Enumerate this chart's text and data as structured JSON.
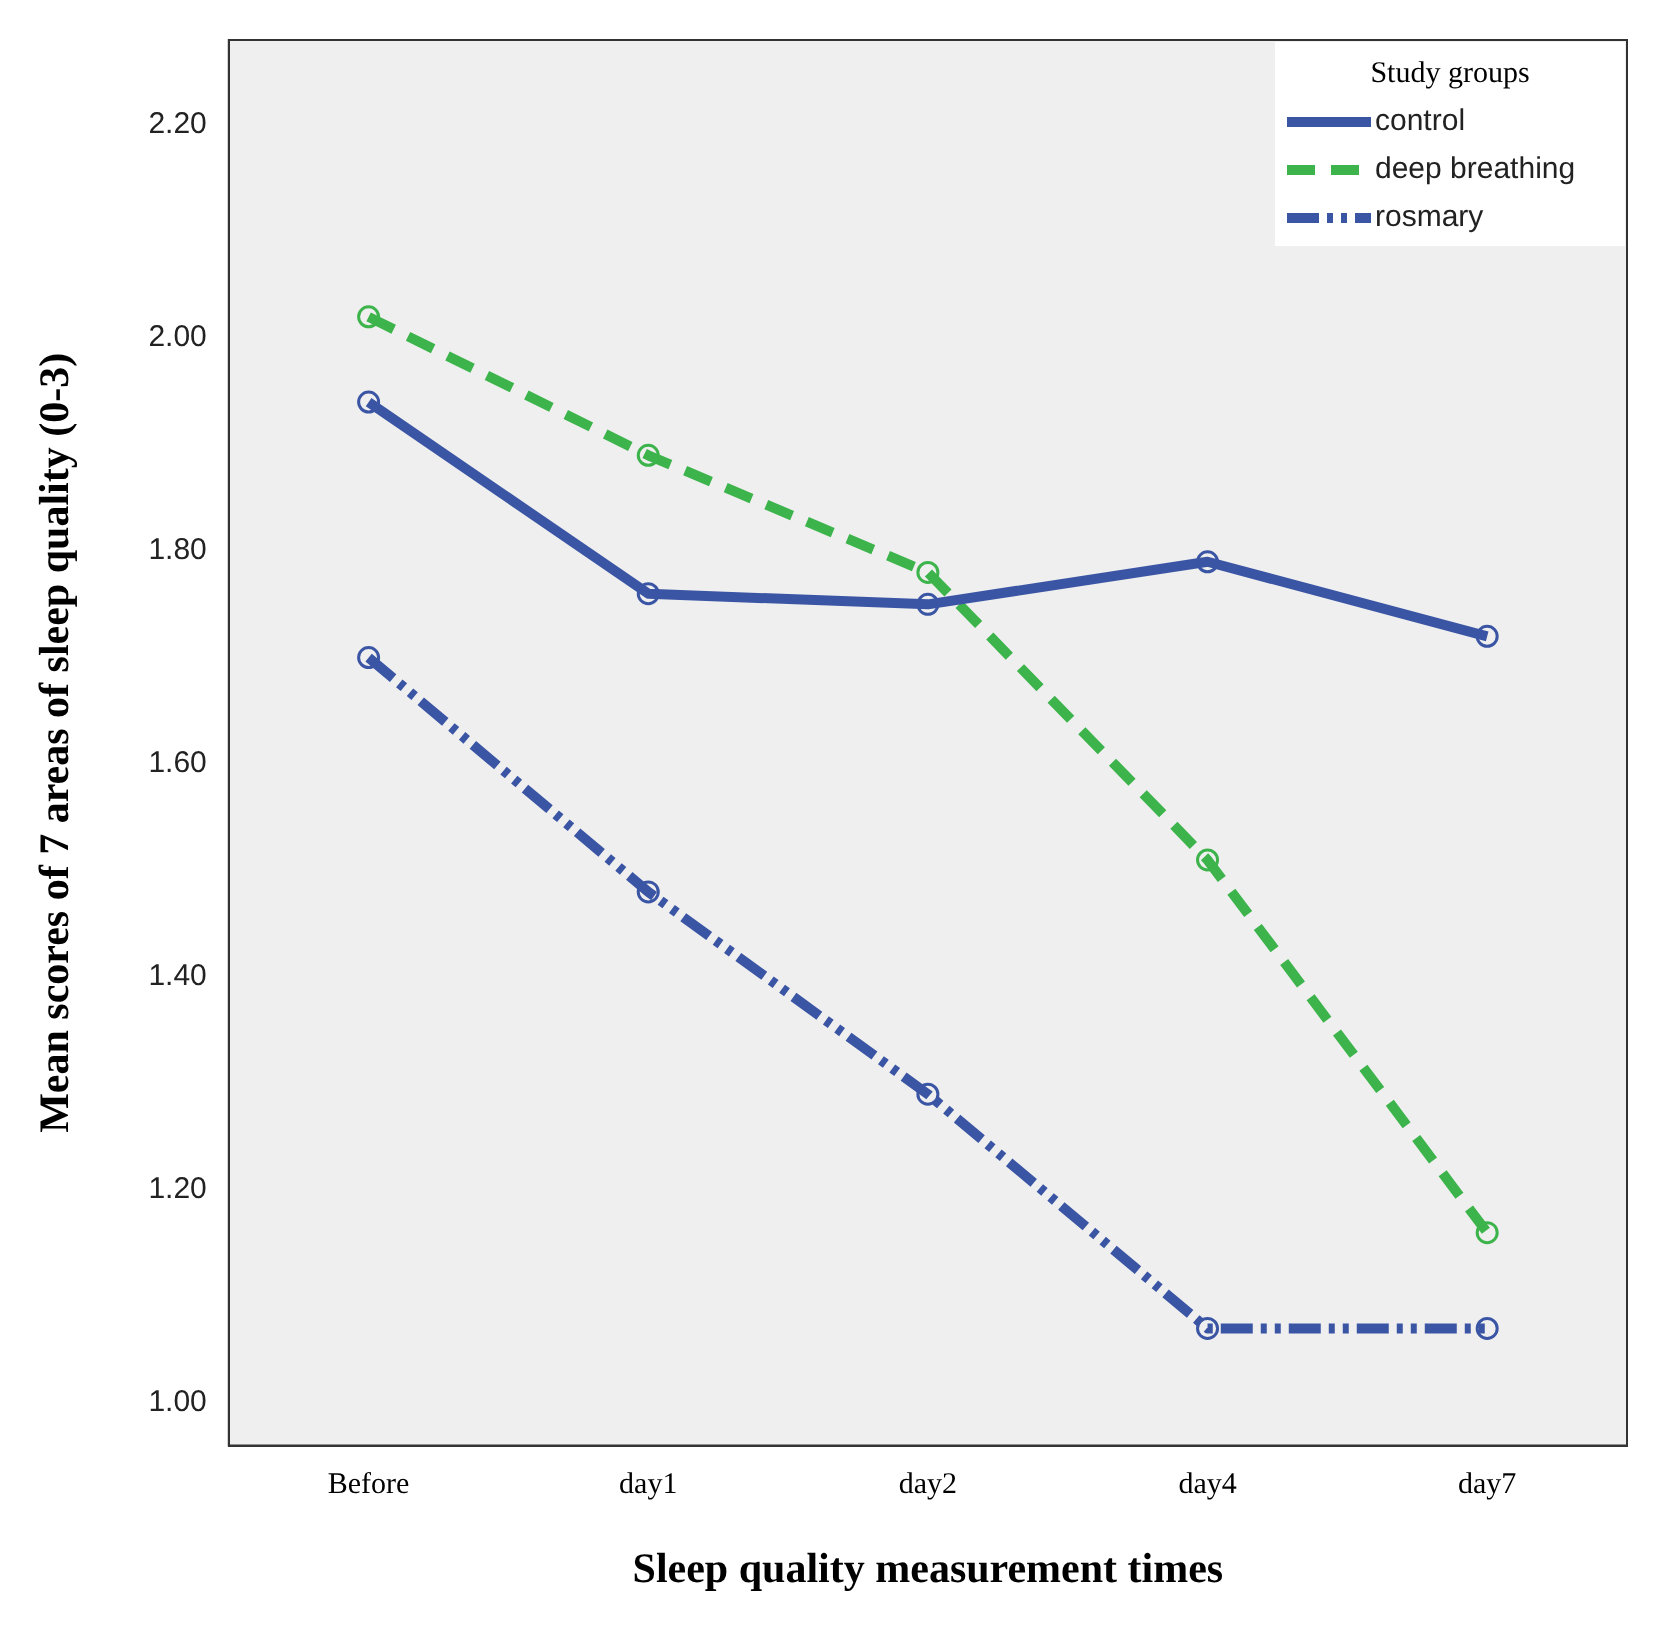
{
  "chart_data": {
    "type": "line",
    "xlabel": "Sleep quality measurement times",
    "ylabel": "Mean scores of 7 areas of sleep quality (0-3)",
    "legend_title": "Study groups",
    "categories": [
      "Before",
      "day1",
      "day2",
      "day4",
      "day7"
    ],
    "series": [
      {
        "name": "control",
        "color": "#3b55a5",
        "line_style": "solid",
        "values": [
          1.94,
          1.76,
          1.75,
          1.79,
          1.72
        ]
      },
      {
        "name": "deep breathing",
        "color": "#3cb44b",
        "line_style": "dashed",
        "values": [
          2.02,
          1.89,
          1.78,
          1.51,
          1.16
        ]
      },
      {
        "name": "rosmary",
        "color": "#3b55a5",
        "line_style": "dotted",
        "values": [
          1.7,
          1.48,
          1.29,
          1.07,
          1.07
        ]
      }
    ],
    "ylim": [
      0.96,
      2.28
    ],
    "yticks": [
      {
        "value": 1.0,
        "label": "1.00"
      },
      {
        "value": 1.2,
        "label": "1.20"
      },
      {
        "value": 1.4,
        "label": "1.40"
      },
      {
        "value": 1.6,
        "label": "1.60"
      },
      {
        "value": 1.8,
        "label": "1.80"
      },
      {
        "value": 2.0,
        "label": "2.00"
      },
      {
        "value": 2.2,
        "label": "2.20"
      }
    ],
    "grid": false,
    "legend": "top right",
    "marker": "circle"
  }
}
